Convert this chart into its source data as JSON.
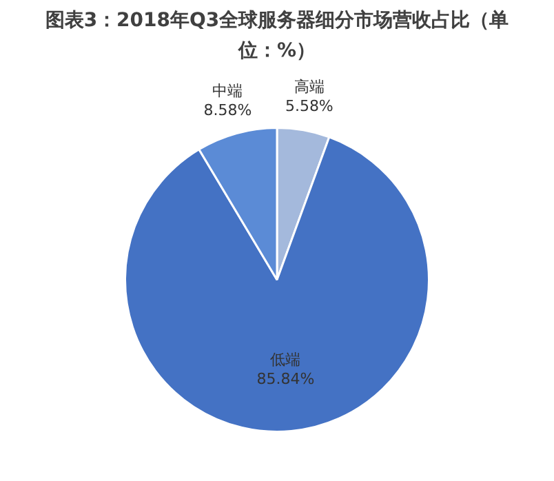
{
  "chart_data": {
    "type": "pie",
    "title": "图表3：2018年Q3全球服务器细分市场营收占比（单位：%）",
    "categories": [
      "高端",
      "低端",
      "中端"
    ],
    "values": [
      5.58,
      85.84,
      8.58
    ],
    "colors": [
      "#a4b9dc",
      "#4472c4",
      "#5b8bd6"
    ],
    "value_labels": [
      "5.58%",
      "85.84%",
      "8.58%"
    ]
  }
}
